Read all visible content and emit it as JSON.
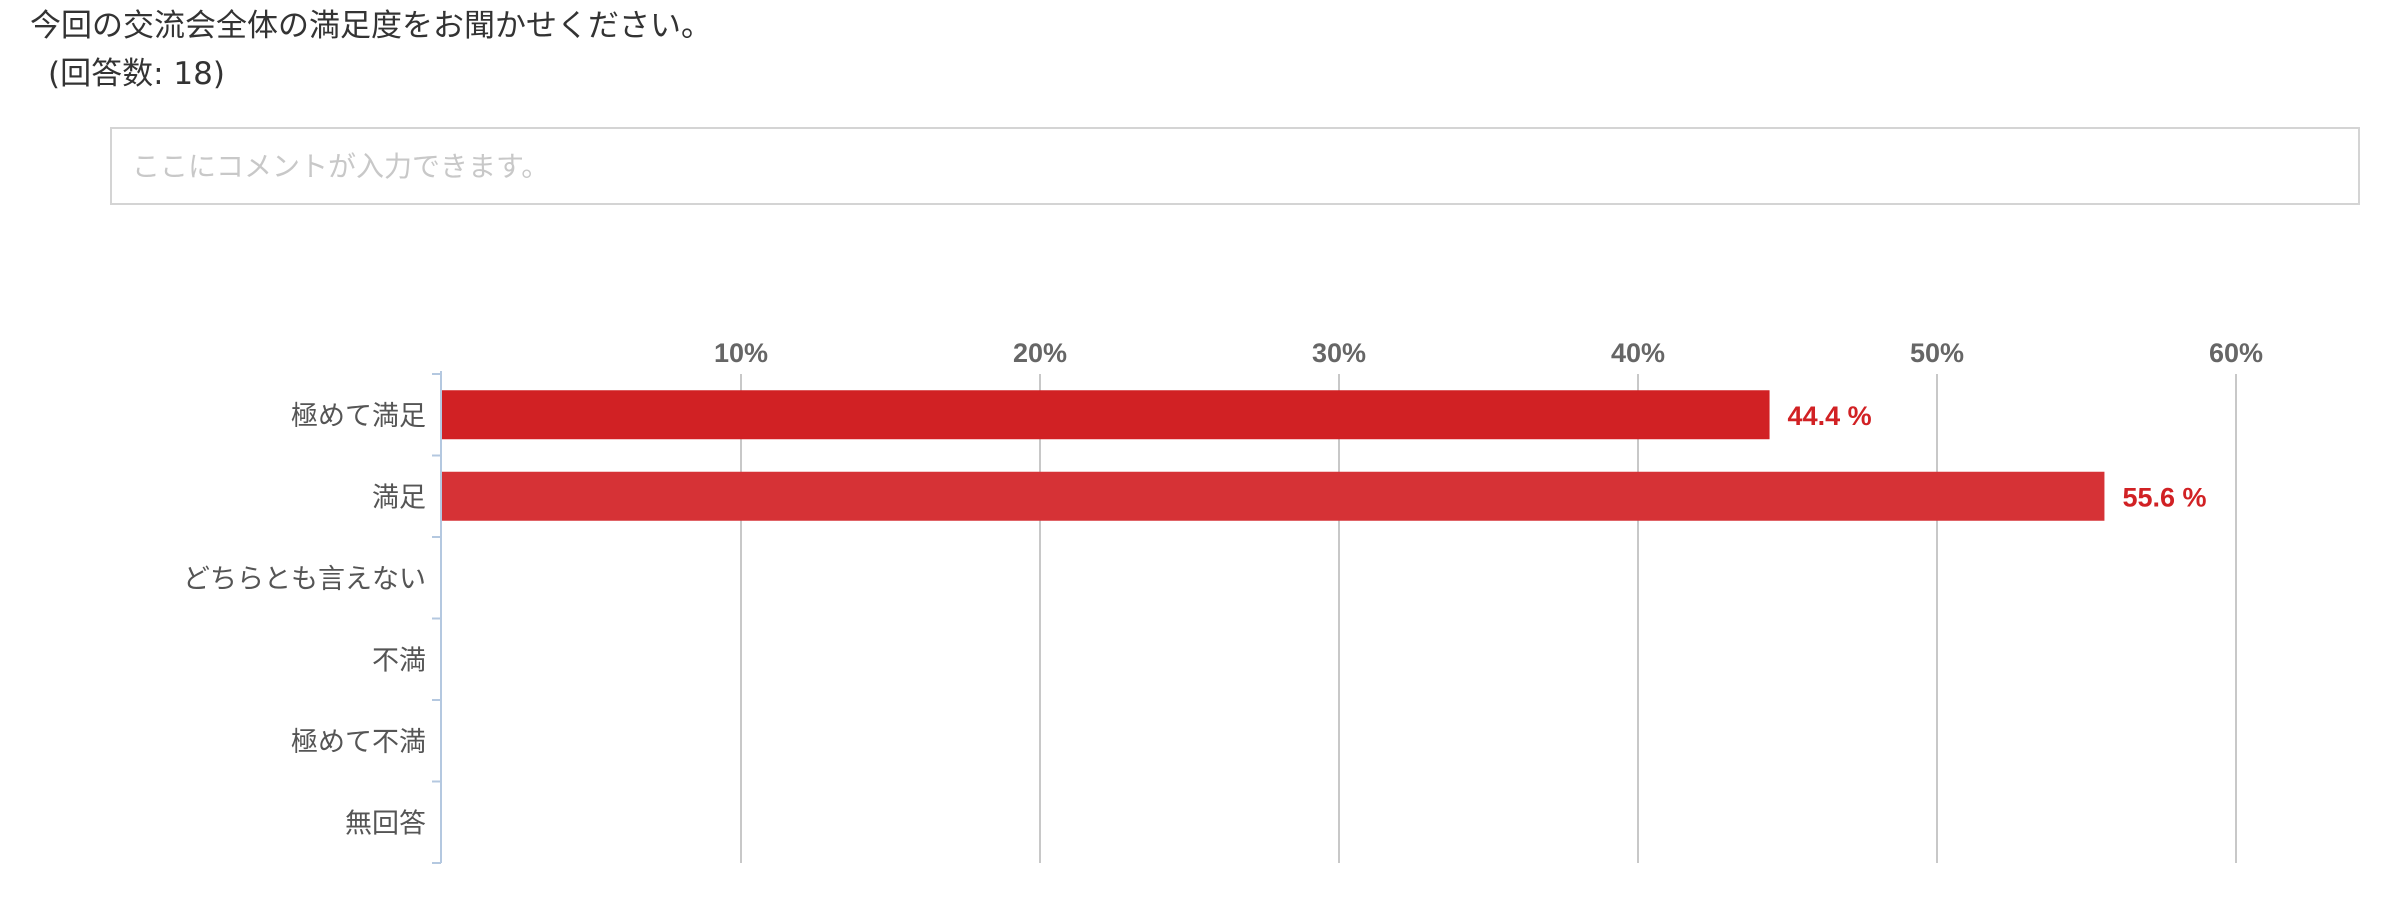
{
  "question": {
    "title": "今回の交流会全体の満足度をお聞かせください。",
    "response_count": "(回答数: 18)"
  },
  "comment": {
    "placeholder": "ここにコメントが入力できます。"
  },
  "colors": {
    "bar_primary": "#d12124",
    "bar_secondary": "#d63236",
    "data_label": "#d12124",
    "grid": "#c8c8c8",
    "axis": "#b4c8e0"
  },
  "chart_data": {
    "type": "bar",
    "orientation": "horizontal",
    "categories": [
      "極めて満足",
      "満足",
      "どちらとも言えない",
      "不満",
      "極めて不満",
      "無回答"
    ],
    "values": [
      44.4,
      55.6,
      0,
      0,
      0,
      0
    ],
    "data_labels": [
      "44.4 %",
      "55.6 %",
      "",
      "",
      "",
      ""
    ],
    "x_ticks": [
      10,
      20,
      30,
      40,
      50,
      60
    ],
    "x_tick_labels": [
      "10%",
      "20%",
      "30%",
      "40%",
      "50%",
      "60%"
    ],
    "xlim": [
      0,
      60
    ],
    "x_axis_position": "top",
    "grid": true,
    "legend": "none"
  }
}
